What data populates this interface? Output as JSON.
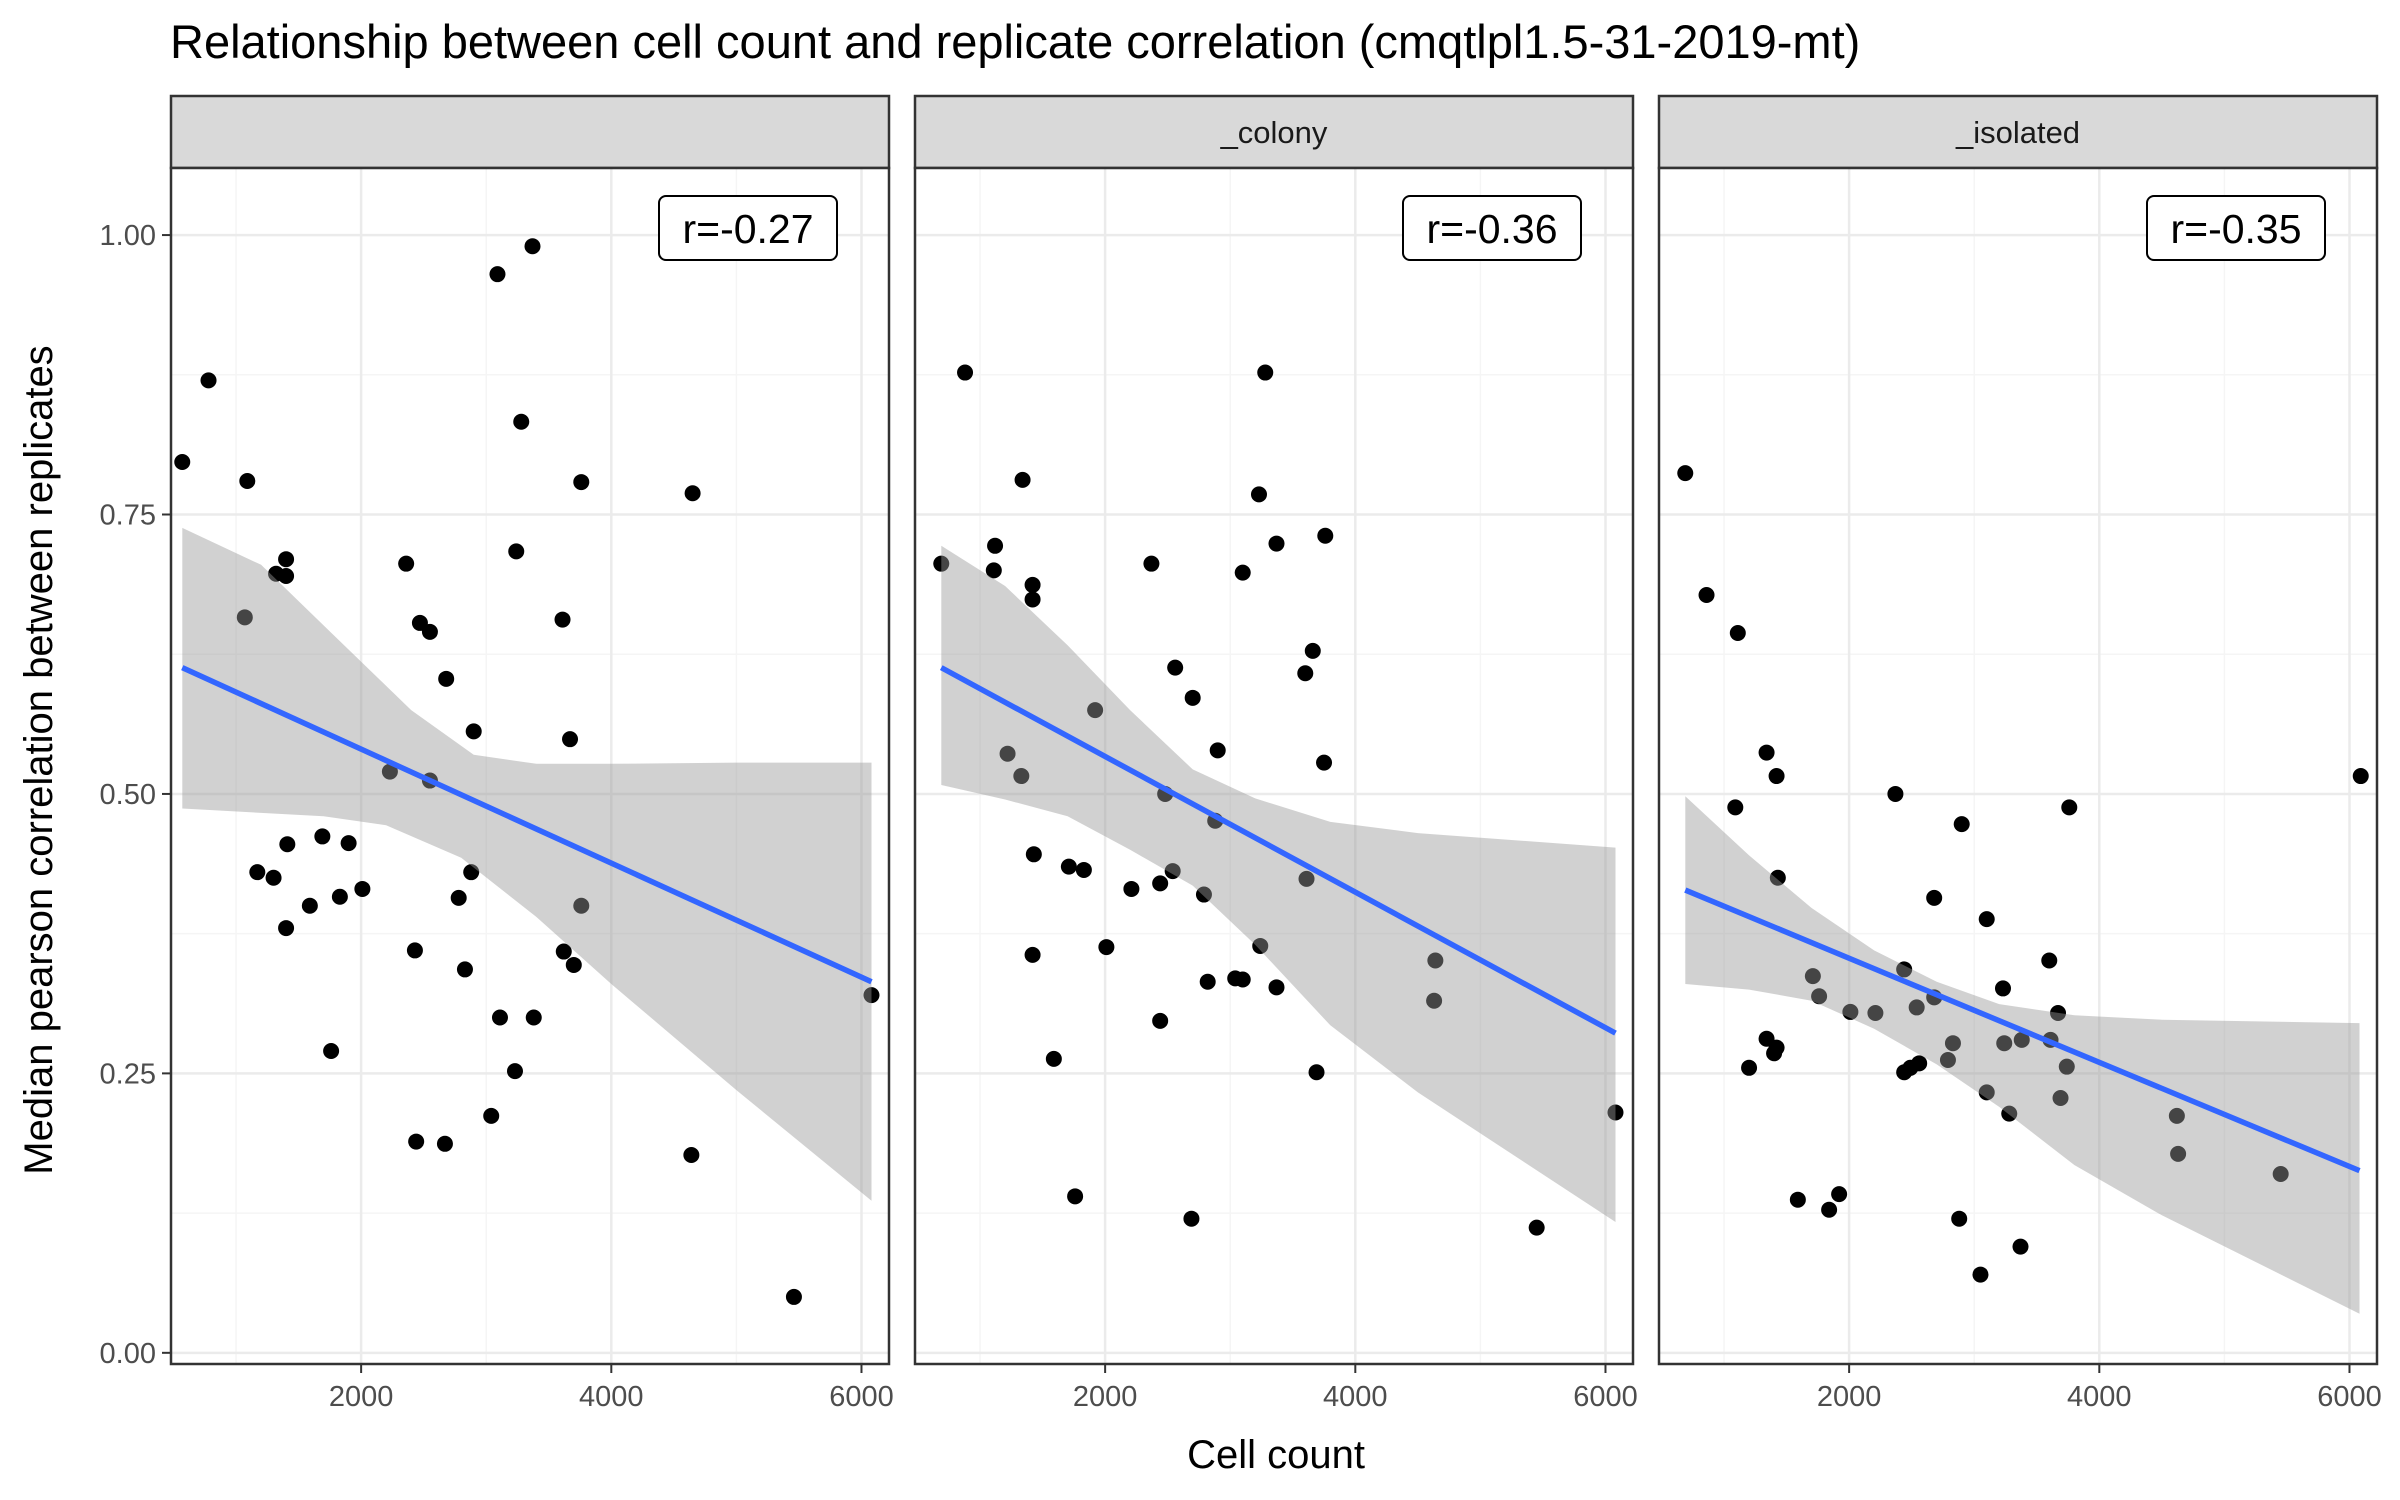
{
  "chart_data": {
    "type": "scatter",
    "title": "Relationship between cell count and replicate correlation (cmqtlpl1.5-31-2019-mt)",
    "xlabel": "Cell count",
    "ylabel": "Median pearson correlation between replicates",
    "xlim": [
      480,
      6220
    ],
    "ylim": [
      -0.01,
      1.06
    ],
    "x_ticks": [
      2000,
      4000,
      6000
    ],
    "y_ticks": [
      0.0,
      0.25,
      0.5,
      0.75,
      1.0
    ],
    "y_tick_labels": [
      "0.00",
      "0.25",
      "0.50",
      "0.75",
      "1.00"
    ],
    "grid": true,
    "smooth": "linear fit with confidence band",
    "colors": {
      "point": "#000000",
      "fit_line": "#3366FF",
      "band": "#999999",
      "strip_fill": "#D9D9D9",
      "grid_major": "#EBEBEB",
      "grid_minor": "#F5F5F5"
    },
    "panels": [
      {
        "strip": "",
        "r_label": "r=-0.27",
        "fit": {
          "x0": 570,
          "y0": 0.613,
          "x1": 6080,
          "y1": 0.332
        },
        "band_upper": [
          [
            570,
            0.738
          ],
          [
            1200,
            0.705
          ],
          [
            1800,
            0.64
          ],
          [
            2400,
            0.575
          ],
          [
            2900,
            0.535
          ],
          [
            3400,
            0.527
          ],
          [
            4000,
            0.527
          ],
          [
            5000,
            0.528
          ],
          [
            6080,
            0.528
          ]
        ],
        "band_lower": [
          [
            570,
            0.487
          ],
          [
            1200,
            0.483
          ],
          [
            1700,
            0.48
          ],
          [
            2200,
            0.472
          ],
          [
            2800,
            0.443
          ],
          [
            3400,
            0.39
          ],
          [
            4000,
            0.33
          ],
          [
            5000,
            0.235
          ],
          [
            6080,
            0.136
          ]
        ],
        "points": [
          [
            570,
            0.797
          ],
          [
            780,
            0.87
          ],
          [
            1090,
            0.78
          ],
          [
            1070,
            0.658
          ],
          [
            1320,
            0.697
          ],
          [
            1400,
            0.71
          ],
          [
            1400,
            0.695
          ],
          [
            1170,
            0.43
          ],
          [
            1300,
            0.425
          ],
          [
            1410,
            0.455
          ],
          [
            1400,
            0.38
          ],
          [
            1590,
            0.4
          ],
          [
            1690,
            0.462
          ],
          [
            1760,
            0.27
          ],
          [
            1830,
            0.408
          ],
          [
            1900,
            0.456
          ],
          [
            2010,
            0.415
          ],
          [
            2230,
            0.52
          ],
          [
            2360,
            0.706
          ],
          [
            2430,
            0.36
          ],
          [
            2440,
            0.189
          ],
          [
            2470,
            0.653
          ],
          [
            2550,
            0.645
          ],
          [
            2550,
            0.512
          ],
          [
            2680,
            0.603
          ],
          [
            2670,
            0.187
          ],
          [
            2780,
            0.407
          ],
          [
            2830,
            0.343
          ],
          [
            2880,
            0.43
          ],
          [
            2900,
            0.556
          ],
          [
            3040,
            0.212
          ],
          [
            3090,
            0.965
          ],
          [
            3110,
            0.3
          ],
          [
            3230,
            0.252
          ],
          [
            3240,
            0.717
          ],
          [
            3280,
            0.833
          ],
          [
            3370,
            0.99
          ],
          [
            3380,
            0.3
          ],
          [
            3610,
            0.656
          ],
          [
            3620,
            0.359
          ],
          [
            3670,
            0.549
          ],
          [
            3700,
            0.347
          ],
          [
            3760,
            0.4
          ],
          [
            3760,
            0.779
          ],
          [
            4640,
            0.177
          ],
          [
            4650,
            0.769
          ],
          [
            5460,
            0.05
          ],
          [
            6080,
            0.32
          ]
        ]
      },
      {
        "strip": "_colony",
        "r_label": "r=-0.36",
        "fit": {
          "x0": 690,
          "y0": 0.613,
          "x1": 6080,
          "y1": 0.286
        },
        "band_upper": [
          [
            690,
            0.722
          ],
          [
            1200,
            0.686
          ],
          [
            1700,
            0.633
          ],
          [
            2200,
            0.575
          ],
          [
            2700,
            0.522
          ],
          [
            3200,
            0.496
          ],
          [
            3800,
            0.475
          ],
          [
            4500,
            0.465
          ],
          [
            6080,
            0.452
          ]
        ],
        "band_lower": [
          [
            690,
            0.508
          ],
          [
            1200,
            0.495
          ],
          [
            1700,
            0.48
          ],
          [
            2200,
            0.45
          ],
          [
            2700,
            0.418
          ],
          [
            3200,
            0.365
          ],
          [
            3800,
            0.293
          ],
          [
            4500,
            0.233
          ],
          [
            6080,
            0.117
          ]
        ],
        "points": [
          [
            690,
            0.706
          ],
          [
            880,
            0.877
          ],
          [
            1110,
            0.7
          ],
          [
            1120,
            0.722
          ],
          [
            1220,
            0.536
          ],
          [
            1340,
            0.781
          ],
          [
            1330,
            0.516
          ],
          [
            1420,
            0.687
          ],
          [
            1420,
            0.674
          ],
          [
            1430,
            0.446
          ],
          [
            1420,
            0.356
          ],
          [
            1590,
            0.263
          ],
          [
            1710,
            0.435
          ],
          [
            1760,
            0.14
          ],
          [
            1830,
            0.432
          ],
          [
            1920,
            0.575
          ],
          [
            2010,
            0.363
          ],
          [
            2210,
            0.415
          ],
          [
            2370,
            0.706
          ],
          [
            2440,
            0.297
          ],
          [
            2440,
            0.42
          ],
          [
            2480,
            0.5
          ],
          [
            2540,
            0.431
          ],
          [
            2560,
            0.613
          ],
          [
            2690,
            0.12
          ],
          [
            2700,
            0.586
          ],
          [
            2790,
            0.41
          ],
          [
            2820,
            0.332
          ],
          [
            2880,
            0.476
          ],
          [
            2900,
            0.539
          ],
          [
            3040,
            0.335
          ],
          [
            3100,
            0.334
          ],
          [
            3100,
            0.698
          ],
          [
            3230,
            0.768
          ],
          [
            3240,
            0.364
          ],
          [
            3280,
            0.877
          ],
          [
            3370,
            0.724
          ],
          [
            3370,
            0.327
          ],
          [
            3600,
            0.608
          ],
          [
            3610,
            0.424
          ],
          [
            3660,
            0.628
          ],
          [
            3690,
            0.251
          ],
          [
            3750,
            0.528
          ],
          [
            3760,
            0.731
          ],
          [
            4630,
            0.315
          ],
          [
            4640,
            0.351
          ],
          [
            5450,
            0.112
          ],
          [
            6080,
            0.215
          ]
        ]
      },
      {
        "strip": "_isolated",
        "r_label": "r=-0.35",
        "fit": {
          "x0": 690,
          "y0": 0.414,
          "x1": 6080,
          "y1": 0.163
        },
        "band_upper": [
          [
            690,
            0.498
          ],
          [
            1200,
            0.445
          ],
          [
            1700,
            0.398
          ],
          [
            2200,
            0.36
          ],
          [
            2700,
            0.332
          ],
          [
            3200,
            0.312
          ],
          [
            3800,
            0.302
          ],
          [
            4500,
            0.298
          ],
          [
            6080,
            0.295
          ]
        ],
        "band_lower": [
          [
            690,
            0.33
          ],
          [
            1200,
            0.325
          ],
          [
            1700,
            0.315
          ],
          [
            2200,
            0.29
          ],
          [
            2700,
            0.258
          ],
          [
            3200,
            0.22
          ],
          [
            3800,
            0.168
          ],
          [
            4500,
            0.123
          ],
          [
            6080,
            0.035
          ]
        ],
        "points": [
          [
            690,
            0.787
          ],
          [
            860,
            0.678
          ],
          [
            1090,
            0.488
          ],
          [
            1110,
            0.644
          ],
          [
            1200,
            0.255
          ],
          [
            1340,
            0.537
          ],
          [
            1340,
            0.281
          ],
          [
            1400,
            0.268
          ],
          [
            1420,
            0.516
          ],
          [
            1420,
            0.273
          ],
          [
            1430,
            0.425
          ],
          [
            1590,
            0.137
          ],
          [
            1710,
            0.337
          ],
          [
            1760,
            0.319
          ],
          [
            1840,
            0.128
          ],
          [
            1920,
            0.142
          ],
          [
            2010,
            0.305
          ],
          [
            2210,
            0.304
          ],
          [
            2370,
            0.5
          ],
          [
            2440,
            0.343
          ],
          [
            2440,
            0.251
          ],
          [
            2490,
            0.255
          ],
          [
            2540,
            0.309
          ],
          [
            2560,
            0.259
          ],
          [
            2680,
            0.407
          ],
          [
            2680,
            0.318
          ],
          [
            2790,
            0.262
          ],
          [
            2830,
            0.277
          ],
          [
            2880,
            0.12
          ],
          [
            2900,
            0.473
          ],
          [
            3050,
            0.07
          ],
          [
            3100,
            0.388
          ],
          [
            3100,
            0.233
          ],
          [
            3230,
            0.326
          ],
          [
            3240,
            0.277
          ],
          [
            3280,
            0.214
          ],
          [
            3370,
            0.095
          ],
          [
            3380,
            0.28
          ],
          [
            3600,
            0.351
          ],
          [
            3610,
            0.28
          ],
          [
            3670,
            0.304
          ],
          [
            3690,
            0.228
          ],
          [
            3740,
            0.256
          ],
          [
            3760,
            0.488
          ],
          [
            4620,
            0.212
          ],
          [
            4630,
            0.178
          ],
          [
            5450,
            0.16
          ],
          [
            6090,
            0.516
          ]
        ]
      }
    ]
  }
}
